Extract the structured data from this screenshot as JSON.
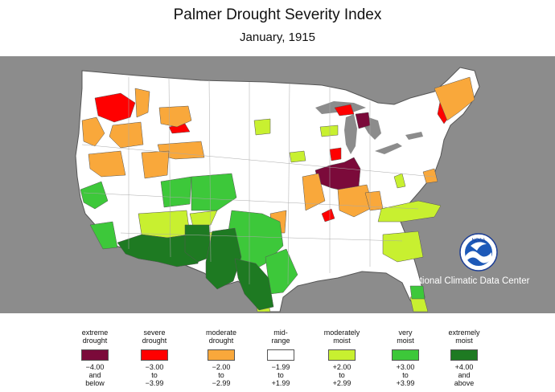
{
  "title": "Palmer Drought Severity Index",
  "subtitle": "January, 1915",
  "map": {
    "region": "Contiguous United States",
    "colors": {
      "background": "#8c8c8c",
      "land": "#ffffff",
      "lakes": "#8c8c8c",
      "borders": "#9a9a9a",
      "state_borders": "#555555"
    }
  },
  "credit": {
    "text": "National Climatic Data Center",
    "logo_text": "NOAA"
  },
  "legend": [
    {
      "label": [
        "extreme",
        "drought"
      ],
      "range": [
        "−4.00",
        "and",
        "below"
      ],
      "color": "#7b0a3a"
    },
    {
      "label": [
        "severe",
        "drought"
      ],
      "range": [
        "−3.00",
        "to",
        "−3.99"
      ],
      "color": "#ff0000"
    },
    {
      "label": [
        "moderate",
        "drought"
      ],
      "range": [
        "−2.00",
        "to",
        "−2.99"
      ],
      "color": "#f9a83b"
    },
    {
      "label": [
        "mid-",
        "range"
      ],
      "range": [
        "−1.99",
        "to",
        "+1.99"
      ],
      "color": "#ffffff"
    },
    {
      "label": [
        "moderately",
        "moist"
      ],
      "range": [
        "+2.00",
        "to",
        "+2.99"
      ],
      "color": "#c8f030"
    },
    {
      "label": [
        "very",
        "moist"
      ],
      "range": [
        "+3.00",
        "to",
        "+3.99"
      ],
      "color": "#3dc83a"
    },
    {
      "label": [
        "extremely",
        "moist"
      ],
      "range": [
        "+4.00",
        "and",
        "above"
      ],
      "color": "#1e7a22"
    }
  ]
}
